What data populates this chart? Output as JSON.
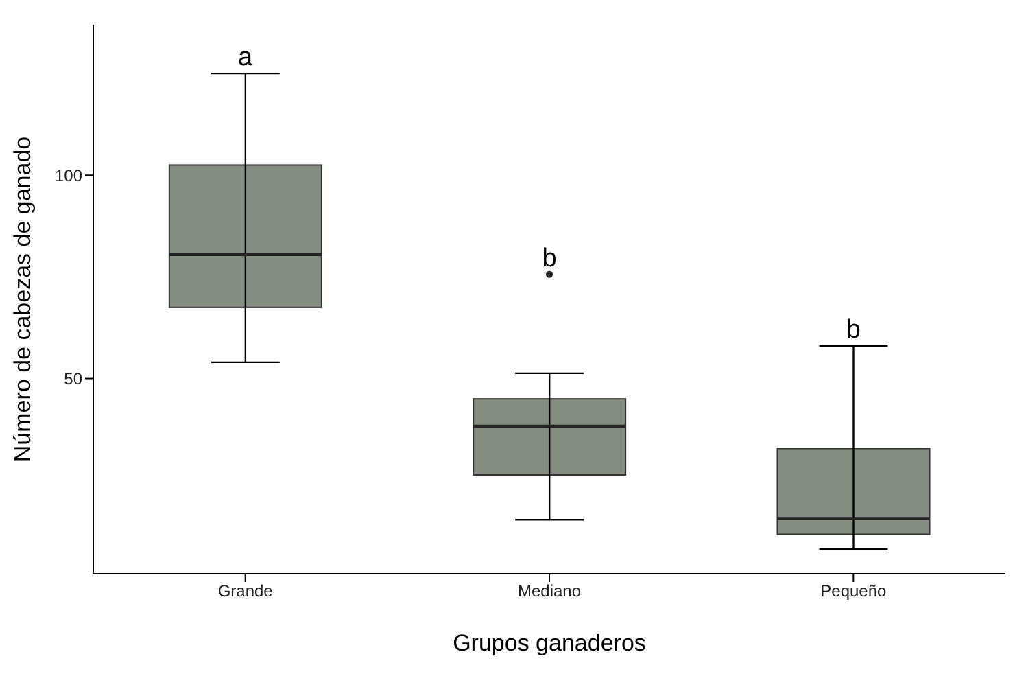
{
  "chart_data": {
    "type": "box",
    "xlabel": "Grupos ganaderos",
    "ylabel": "Número de cabezas de ganado",
    "categories": [
      "Grande",
      "Mediano",
      "Pequeño"
    ],
    "color": "#858c82",
    "boxes": [
      {
        "low": 54,
        "q1": 67.5,
        "median": 80.5,
        "q3": 102.5,
        "high": 125
      },
      {
        "low": 15.3,
        "q1": 26.3,
        "median": 38.3,
        "q3": 45,
        "high": 51.3,
        "outliers": [
          75.6
        ]
      },
      {
        "low": 8.1,
        "q1": 11.7,
        "median": 15.6,
        "q3": 32.8,
        "high": 58
      }
    ],
    "ylim": [
      2,
      137
    ],
    "yticks": [
      50,
      100
    ],
    "annotations": [
      "a",
      "b",
      "b"
    ]
  }
}
